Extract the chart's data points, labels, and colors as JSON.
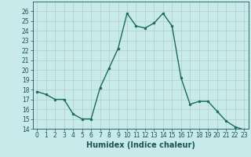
{
  "x": [
    0,
    1,
    2,
    3,
    4,
    5,
    6,
    7,
    8,
    9,
    10,
    11,
    12,
    13,
    14,
    15,
    16,
    17,
    18,
    19,
    20,
    21,
    22,
    23
  ],
  "y": [
    17.8,
    17.5,
    17.0,
    17.0,
    15.5,
    15.0,
    15.0,
    18.2,
    20.2,
    22.2,
    25.8,
    24.5,
    24.3,
    24.8,
    25.8,
    24.5,
    19.2,
    16.5,
    16.8,
    16.8,
    15.8,
    14.8,
    14.2,
    13.9
  ],
  "line_color": "#1a6b5a",
  "marker": "o",
  "marker_size": 2,
  "bg_color": "#c8eaea",
  "grid_color": "#b0cccc",
  "xlabel": "Humidex (Indice chaleur)",
  "ylim": [
    14,
    27
  ],
  "xlim": [
    -0.5,
    23.5
  ],
  "yticks": [
    14,
    15,
    16,
    17,
    18,
    19,
    20,
    21,
    22,
    23,
    24,
    25,
    26
  ],
  "xticks": [
    0,
    1,
    2,
    3,
    4,
    5,
    6,
    7,
    8,
    9,
    10,
    11,
    12,
    13,
    14,
    15,
    16,
    17,
    18,
    19,
    20,
    21,
    22,
    23
  ],
  "tick_fontsize": 5.5,
  "xlabel_fontsize": 7,
  "line_width": 1.0,
  "tick_color": "#1a5555",
  "label_color": "#1a5555"
}
